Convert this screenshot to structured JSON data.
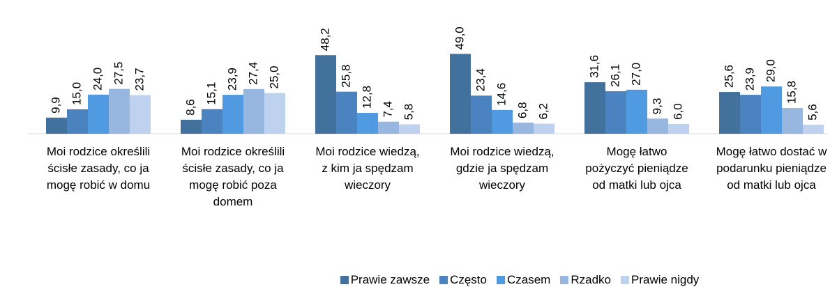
{
  "chart_data": {
    "type": "bar",
    "categories": [
      "Moi rodzice określili ścisłe zasady, co ja mogę robić w domu",
      "Moi rodzice określili ścisłe zasady, co ja mogę robić poza domem",
      "Moi rodzice wiedzą, z kim ja spędzam wieczory",
      "Moi rodzice wiedzą, gdzie ja spędzam wieczory",
      "Mogę łatwo pożyczyć pieniądze od matki lub ojca",
      "Mogę łatwo dostać w podarunku pieniądze od matki lub ojca"
    ],
    "series": [
      {
        "name": "Prawie zawsze",
        "color": "#41719c",
        "values": [
          9.9,
          8.6,
          48.2,
          49.0,
          31.6,
          25.6
        ],
        "value_labels": [
          "9,9",
          "8,6",
          "48,2",
          "49,0",
          "31,6",
          "25,6"
        ]
      },
      {
        "name": "Często",
        "color": "#4a83bf",
        "values": [
          15.0,
          15.1,
          25.8,
          23.4,
          26.1,
          23.9
        ],
        "value_labels": [
          "15,0",
          "15,1",
          "25,8",
          "23,4",
          "26,1",
          "23,9"
        ]
      },
      {
        "name": "Czasem",
        "color": "#4f9ae0",
        "values": [
          24.0,
          23.9,
          12.8,
          14.6,
          27.0,
          29.0
        ],
        "value_labels": [
          "24,0",
          "23,9",
          "12,8",
          "14,6",
          "27,0",
          "29,0"
        ]
      },
      {
        "name": "Rzadko",
        "color": "#97b6e0",
        "values": [
          27.5,
          27.4,
          7.4,
          6.8,
          9.3,
          15.8
        ],
        "value_labels": [
          "27,5",
          "27,4",
          "7,4",
          "6,8",
          "9,3",
          "15,8"
        ]
      },
      {
        "name": "Prawie nigdy",
        "color": "#bed2ef",
        "values": [
          23.7,
          25.0,
          5.8,
          6.2,
          6.0,
          5.6
        ],
        "value_labels": [
          "23,7",
          "25,0",
          "5,8",
          "6,2",
          "6,0",
          "5,6"
        ]
      }
    ],
    "ylim": [
      0,
      50
    ],
    "legend": "bottom"
  }
}
